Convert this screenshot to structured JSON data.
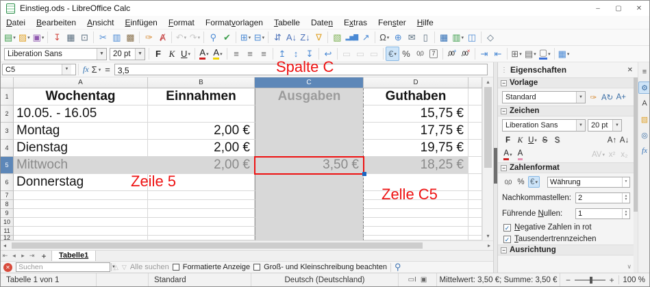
{
  "window": {
    "title": "Einstieg.ods - LibreOffice Calc",
    "controls": [
      {
        "n": "minimize-button",
        "g": "–"
      },
      {
        "n": "maximize-button",
        "g": "▢"
      },
      {
        "n": "close-button",
        "g": "✕"
      }
    ]
  },
  "menubar": [
    {
      "label": "Datei",
      "u": 0
    },
    {
      "label": "Bearbeiten",
      "u": 0
    },
    {
      "label": "Ansicht",
      "u": 0
    },
    {
      "label": "Einfügen",
      "u": 0
    },
    {
      "label": "Format",
      "u": 0
    },
    {
      "label": "Formatvorlagen",
      "u": 6
    },
    {
      "label": "Tabelle",
      "u": 0
    },
    {
      "label": "Daten",
      "u": 4
    },
    {
      "label": "Extras",
      "u": 1
    },
    {
      "label": "Fenster",
      "u": 3
    },
    {
      "label": "Hilfe",
      "u": 0
    }
  ],
  "toolbar_standard": [
    {
      "n": "new-document",
      "g": "▤",
      "c": "#3d9e4c",
      "a": 1
    },
    {
      "n": "open-folder",
      "g": "▨",
      "c": "#e0a42e",
      "a": 1
    },
    {
      "n": "save",
      "g": "▣",
      "c": "#9059b0",
      "a": 1,
      "sep": 1
    },
    {
      "n": "export-pdf",
      "g": "↧",
      "c": "#d24a43"
    },
    {
      "n": "print",
      "g": "▦",
      "c": "#5a6e7f"
    },
    {
      "n": "print-preview",
      "g": "⊡",
      "c": "#5a6e7f",
      "sep": 1
    },
    {
      "n": "cut",
      "g": "✂",
      "c": "#4a89d4"
    },
    {
      "n": "copy",
      "g": "▥",
      "c": "#4a89d4"
    },
    {
      "n": "paste",
      "g": "▩",
      "c": "#8a7350",
      "sep": 1
    },
    {
      "n": "clone-formatting",
      "g": "✑",
      "c": "#d78b34"
    },
    {
      "n": "clear-formatting",
      "g": "Ⱥ",
      "c": "#c43c3c",
      "sep": 1
    },
    {
      "n": "undo",
      "g": "↶",
      "c": "#9a9a9a",
      "a": 1,
      "d": 1
    },
    {
      "n": "redo",
      "g": "↷",
      "c": "#9a9a9a",
      "a": 1,
      "d": 1,
      "sep": 1
    },
    {
      "n": "find-and-replace",
      "g": "⚲",
      "c": "#4a89d4"
    },
    {
      "n": "spelling",
      "g": "✔",
      "c": "#3d9e4c",
      "sep": 1
    },
    {
      "n": "row",
      "g": "⊞",
      "c": "#4a89d4",
      "a": 1
    },
    {
      "n": "column",
      "g": "⊟",
      "c": "#4a89d4",
      "a": 1,
      "sep": 1
    },
    {
      "n": "sort",
      "g": "⇵",
      "c": "#4a70b8"
    },
    {
      "n": "sort-ascending",
      "g": "A↓",
      "c": "#4a70b8"
    },
    {
      "n": "sort-descending",
      "g": "Z↓",
      "c": "#4a70b8"
    },
    {
      "n": "autofilter",
      "g": "∇",
      "c": "#e0a42e",
      "sep": 1
    },
    {
      "n": "insert-image",
      "g": "▧",
      "c": "#7cb052"
    },
    {
      "n": "insert-chart",
      "g": "▂▅▇",
      "c": "#4a89d4"
    },
    {
      "n": "insert-pivot-table",
      "g": "↗",
      "c": "#4a89d4",
      "sep": 1
    },
    {
      "n": "insert-special-character",
      "g": "Ω",
      "c": "#444444",
      "a": 1
    },
    {
      "n": "insert-hyperlink",
      "g": "⊕",
      "c": "#4a89d4"
    },
    {
      "n": "insert-comment",
      "g": "✉",
      "c": "#5a6e7f"
    },
    {
      "n": "headers-and-footers",
      "g": "▯",
      "c": "#5a6e7f",
      "sep": 1
    },
    {
      "n": "freeze-rows-and-columns",
      "g": "▦",
      "c": "#2f6eb5"
    },
    {
      "n": "freeze-cells",
      "g": "▥",
      "c": "#3d9e4c",
      "a": 1
    },
    {
      "n": "split-window",
      "g": "◫",
      "c": "#4a89d4",
      "sep": 1
    },
    {
      "n": "show-draw-functions",
      "g": "◇",
      "c": "#5a6e7f"
    }
  ],
  "toolbar_format": {
    "font_name": "Liberation Sans",
    "font_size": "20 pt",
    "buttons": [
      {
        "n": "bold",
        "g": "F",
        "cls": "b"
      },
      {
        "n": "italic",
        "g": "K",
        "cls": "i"
      },
      {
        "n": "underline",
        "g": "U",
        "cls": "u",
        "a": 1,
        "sep": 1
      },
      {
        "n": "font-color",
        "g": "A",
        "cls": "fc",
        "a": 1
      },
      {
        "n": "highlighting-color",
        "g": "A",
        "cls": "hc",
        "a": 1,
        "sep": 1
      },
      {
        "n": "align-left",
        "g": "≡",
        "c": "#666666"
      },
      {
        "n": "align-center",
        "g": "≡",
        "c": "#666666"
      },
      {
        "n": "align-right",
        "g": "≡",
        "c": "#666666",
        "sep": 1
      },
      {
        "n": "align-top",
        "g": "↥",
        "c": "#4a89d4"
      },
      {
        "n": "center-vertically",
        "g": "↕",
        "c": "#4a89d4"
      },
      {
        "n": "align-bottom",
        "g": "↧",
        "c": "#4a89d4",
        "sep": 1
      },
      {
        "n": "wrap-text",
        "g": "↩",
        "c": "#4a89d4",
        "sep": 1
      },
      {
        "n": "merge-and-center-cells",
        "g": "▭",
        "c": "#b0b0b0",
        "d": 1
      },
      {
        "n": "merge-cells",
        "g": "▭",
        "c": "#b0b0b0",
        "d": 1
      },
      {
        "n": "unmerge-cells",
        "g": "▭",
        "c": "#b0b0b0",
        "d": 1,
        "sep": 1
      },
      {
        "n": "format-as-currency",
        "g": "€",
        "c": "#5a6e7f",
        "a": 1,
        "on": 1
      },
      {
        "n": "format-as-percent",
        "g": "%",
        "c": "#444444"
      },
      {
        "n": "format-as-number",
        "g": "0,0",
        "c": "#444444"
      },
      {
        "n": "format-as-date",
        "g": "7",
        "cls": "date",
        "sep": 1
      },
      {
        "n": "add-decimal-place",
        "g": ",00",
        "sup": "+",
        "supc": "#2d7dd2"
      },
      {
        "n": "delete-decimal-place",
        "g": ",00",
        "sup": "×",
        "supc": "#d23c3c",
        "sep": 1
      },
      {
        "n": "increase-indent",
        "g": "⇥",
        "c": "#4a89d4"
      },
      {
        "n": "decrease-indent",
        "g": "⇤",
        "c": "#4a89d4",
        "sep": 1
      },
      {
        "n": "borders",
        "g": "⊞",
        "c": "#666666",
        "a": 1
      },
      {
        "n": "border-style",
        "g": "▤",
        "c": "#666666",
        "a": 1
      },
      {
        "n": "border-color",
        "g": "▢",
        "cls": "bc",
        "a": 1,
        "sep": 1
      },
      {
        "n": "conditional-formatting",
        "g": "▦",
        "c": "#4a89d4",
        "a": 1
      }
    ]
  },
  "formula_bar": {
    "cell_ref": "C5",
    "fx": "fx",
    "sum": "Σ",
    "equals": "=",
    "value": "3,5"
  },
  "annotations": {
    "column": "Spalte C",
    "row": "Zeile 5",
    "cell": "Zelle C5"
  },
  "grid": {
    "col_headers": [
      "A",
      "B",
      "C",
      "D"
    ],
    "selected_column": "C",
    "selected_row": "5",
    "active_cell": "C5",
    "rows": [
      {
        "n": "1",
        "cells": [
          "Wochentag",
          "Einnahmen",
          "Ausgaben",
          "Guthaben"
        ]
      },
      {
        "n": "2",
        "cells": [
          "10.05. - 16.05",
          "",
          "",
          "15,75 €"
        ]
      },
      {
        "n": "3",
        "cells": [
          "Montag",
          "2,00 €",
          "",
          "17,75 €"
        ]
      },
      {
        "n": "4",
        "cells": [
          "Dienstag",
          "2,00 €",
          "",
          "19,75 €"
        ]
      },
      {
        "n": "5",
        "cells": [
          "Mittwoch",
          "2,00 €",
          "3,50 €",
          "18,25 €"
        ]
      },
      {
        "n": "6",
        "cells": [
          "Donnerstag",
          "",
          "",
          ""
        ]
      },
      {
        "n": "7",
        "cells": [
          "",
          "",
          "",
          ""
        ]
      },
      {
        "n": "8",
        "cells": [
          "",
          "",
          "",
          ""
        ]
      },
      {
        "n": "9",
        "cells": [
          "",
          "",
          "",
          ""
        ]
      },
      {
        "n": "10",
        "cells": [
          "",
          "",
          "",
          ""
        ]
      },
      {
        "n": "11",
        "cells": [
          "",
          "",
          "",
          ""
        ]
      },
      {
        "n": "12",
        "cells": [
          "",
          "",
          "",
          ""
        ]
      }
    ]
  },
  "scroll": {
    "up": "▴",
    "down": "▾",
    "left": "◂",
    "right": "▸"
  },
  "sheet_tabs": {
    "nav": [
      {
        "n": "first-sheet",
        "g": "⇤"
      },
      {
        "n": "previous-sheet",
        "g": "◂"
      },
      {
        "n": "next-sheet",
        "g": "▸"
      },
      {
        "n": "last-sheet",
        "g": "⇥"
      }
    ],
    "add": "+",
    "tabs": [
      "Tabelle1"
    ]
  },
  "find_bar": {
    "close": "✕",
    "placeholder": "Suchen",
    "prev": "△",
    "next": "▽",
    "find_all": "Alle suchen",
    "formatted": "Formatierte Anzeige",
    "match_case": "Groß- und Kleinschreibung beachten",
    "find_icon": "⚲"
  },
  "status_bar": {
    "sheet_info": "Tabelle 1 von 1",
    "page_style": "Standard",
    "language": "Deutsch (Deutschland)",
    "icons": [
      {
        "n": "selection-mode",
        "g": "▭I"
      },
      {
        "n": "document-modified",
        "g": "▣"
      }
    ],
    "summary": "Mittelwert: 3,50 €; Summe: 3,50 €",
    "zoom_minus": "−",
    "zoom_plus": "+",
    "zoom_level": "100 %"
  },
  "sidebar": {
    "title": "Eigenschaften",
    "close": "✕",
    "grip": "⋮",
    "collapse_glyph": "−",
    "scroll_down_glyph": "∨",
    "rail": [
      {
        "n": "sidebar-menu",
        "g": "≡",
        "c": "#444444"
      },
      {
        "n": "tab-properties",
        "g": "⚙",
        "c": "#3a6ea5",
        "on": 1
      },
      {
        "n": "tab-styles",
        "g": "A",
        "c": "#444444"
      },
      {
        "n": "tab-gallery",
        "g": "▧",
        "c": "#e0a42e"
      },
      {
        "n": "tab-navigator",
        "g": "◎",
        "c": "#3a6ea5"
      },
      {
        "n": "tab-functions",
        "g": "fx",
        "fx": 1
      }
    ],
    "vorlage": {
      "label": "Vorlage",
      "style_name": "Standard",
      "buttons": [
        {
          "n": "update-style",
          "g": "✑",
          "c": "#d78b34"
        },
        {
          "n": "edit-style",
          "g": "A↻",
          "c": "#3a6ea5"
        },
        {
          "n": "new-style",
          "g": "A+",
          "c": "#3a6ea5"
        }
      ]
    },
    "zeichen": {
      "label": "Zeichen",
      "font_name": "Liberation Sans",
      "font_size": "20 pt",
      "row1": [
        {
          "n": "bold",
          "g": "F",
          "cls": "b"
        },
        {
          "n": "italic",
          "g": "K",
          "cls": "i"
        },
        {
          "n": "underline",
          "g": "U",
          "cls": "u",
          "a": 1
        },
        {
          "n": "strikethrough",
          "g": "S",
          "cls": "s"
        },
        {
          "n": "shadow",
          "g": "S",
          "cls": "sh"
        }
      ],
      "row1r": [
        {
          "n": "increase-font-size",
          "g": "A↑",
          "c": "#333333"
        },
        {
          "n": "decrease-font-size",
          "g": "A↓",
          "c": "#333333"
        }
      ],
      "row2": [
        {
          "n": "font-color",
          "g": "A",
          "cls": "fc",
          "a": 1
        },
        {
          "n": "highlighting-color",
          "g": "A",
          "cls": "hc3"
        }
      ],
      "row2r": [
        {
          "n": "character-spacing",
          "g": "AV",
          "c": "#888888",
          "a": 1,
          "d": 1
        },
        {
          "n": "superscript",
          "g": "x²",
          "c": "#888888",
          "d": 1
        },
        {
          "n": "subscript",
          "g": "x₂",
          "c": "#888888",
          "d": 1
        }
      ]
    },
    "zahlenformat": {
      "label": "Zahlenformat",
      "buttons": [
        {
          "n": "format-number",
          "g": "0,0",
          "c": "#444444"
        },
        {
          "n": "format-percent",
          "g": "%",
          "c": "#444444"
        },
        {
          "n": "format-currency",
          "g": "€",
          "c": "#5a6e7f",
          "a": 1,
          "on": 1
        }
      ],
      "category": "Währung",
      "decimals_label": "Nachkommastellen:",
      "decimals_value": "2",
      "leading_zeroes_label": "Führende Nullen:",
      "leading_zeroes_accel": 9,
      "leading_zeroes_value": "1",
      "negative_red_label": "Negative Zahlen in rot",
      "negative_red_accel": 0,
      "thousands_label": "Tausendertrennzeichen",
      "thousands_accel": 0,
      "check_glyph": "✓"
    },
    "ausrichtung": {
      "label": "Ausrichtung"
    }
  }
}
